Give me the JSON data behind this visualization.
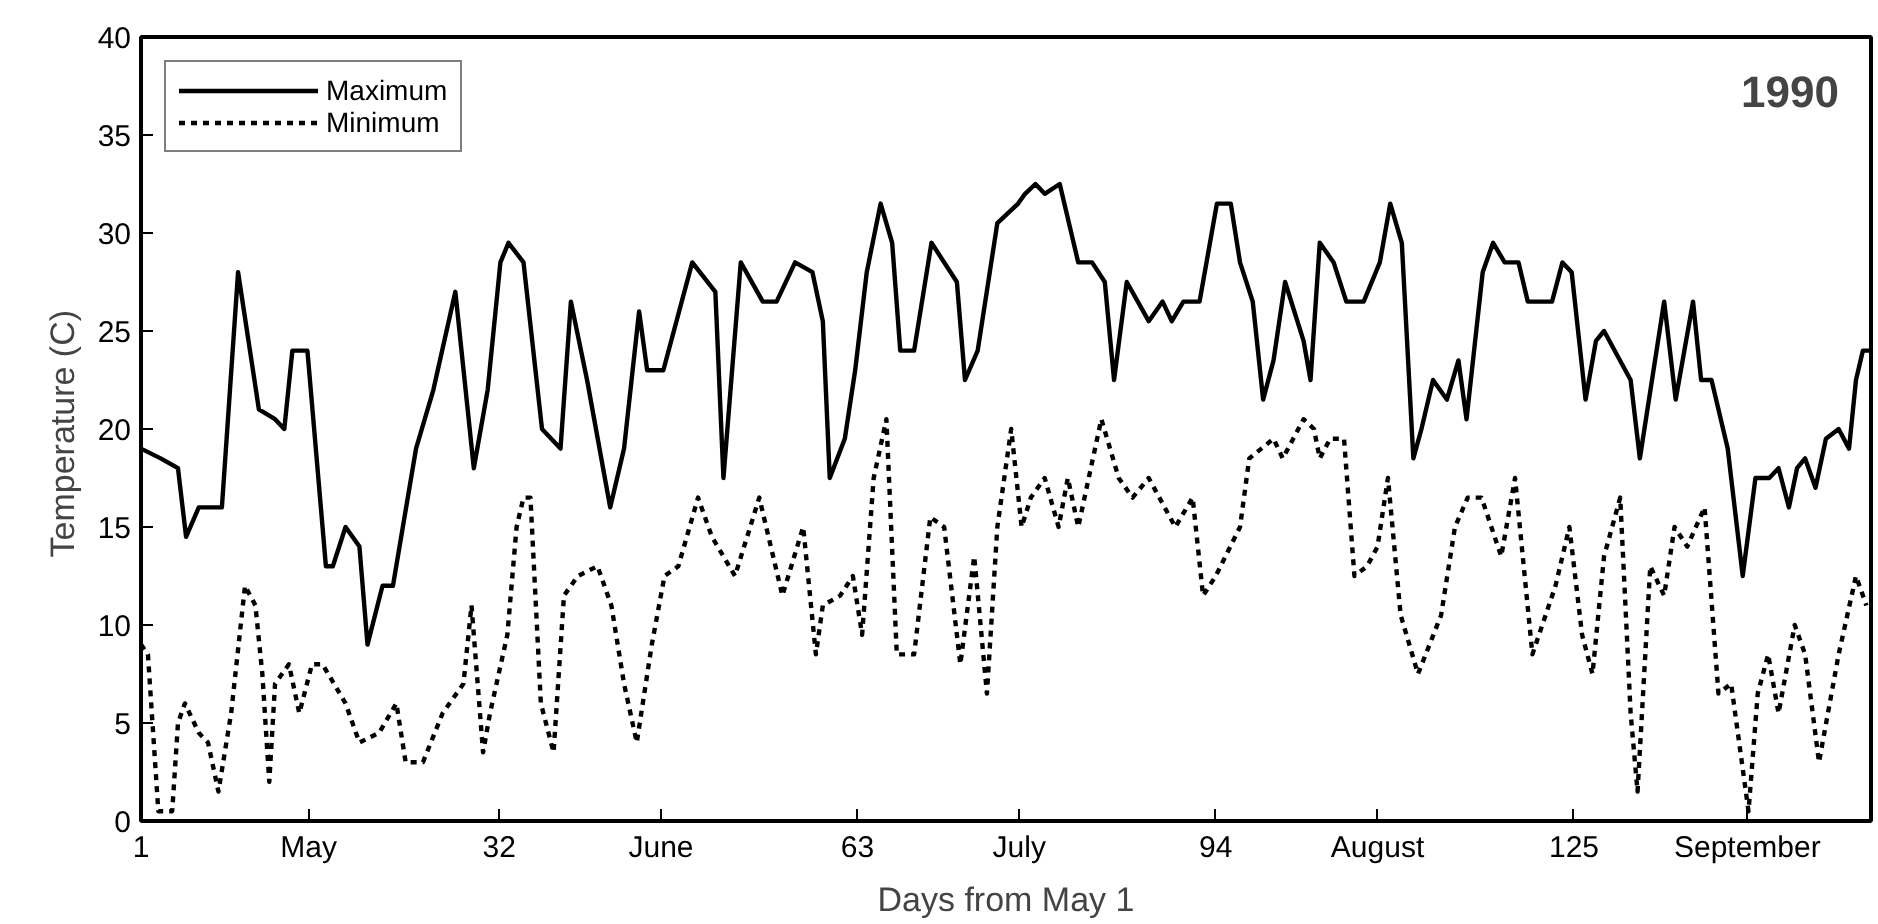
{
  "chart_data": {
    "type": "line",
    "xlabel": "Days from May 1",
    "ylabel": "Temperature  (C)",
    "annotations": [
      "1990"
    ],
    "xlim": [
      1,
      150.7
    ],
    "ylim": [
      0,
      40
    ],
    "xticks": [
      1,
      {
        "value": 15.5,
        "label": "May"
      },
      32,
      {
        "value": 46,
        "label": "June"
      },
      63,
      {
        "value": 77,
        "label": "July"
      },
      94,
      {
        "value": 108,
        "label": "August"
      },
      125,
      {
        "value": 140,
        "label": "September"
      }
    ],
    "yticks": [
      0,
      5,
      10,
      15,
      20,
      25,
      30,
      35,
      40
    ],
    "grid": false,
    "legend": "top left",
    "marker": "none",
    "series": [
      {
        "name": "Maximum",
        "color": "#000000",
        "line_style": "solid",
        "x": [
          1,
          2.7,
          4.2,
          4.9,
          6,
          8,
          9.4,
          11.2,
          12.6,
          13.4,
          14.1,
          15.4,
          17,
          17.6,
          18.7,
          19.9,
          20.6,
          21.9,
          22.8,
          24.8,
          26.3,
          28.2,
          29.8,
          31,
          32.1,
          32.8,
          34.1,
          35.7,
          37.3,
          38.2,
          39.6,
          41.6,
          42.8,
          44.1,
          44.8,
          46.2,
          48.7,
          50.7,
          51.4,
          52.9,
          54.8,
          56,
          57.6,
          59.1,
          60,
          60.6,
          61.9,
          62.8,
          63.8,
          65,
          66,
          66.7,
          67.9,
          69.4,
          71.6,
          72.3,
          73.4,
          75.1,
          76.9,
          77.5,
          78.4,
          79.2,
          80.5,
          82.1,
          83.3,
          84.4,
          85.2,
          86.3,
          88.2,
          89.4,
          90.2,
          91.2,
          92.6,
          94.1,
          95.3,
          96.1,
          97.2,
          98.1,
          99,
          100,
          101.6,
          102.2,
          103,
          104.2,
          105.3,
          106.8,
          108.2,
          109.1,
          110.1,
          111.1,
          111.8,
          112.8,
          114,
          115,
          115.7,
          117.1,
          118,
          119,
          120.2,
          121,
          123.1,
          124,
          124.8,
          126,
          126.9,
          127.6,
          129.9,
          130.7,
          132.8,
          133.8,
          135.3,
          136,
          136.9,
          138.3,
          139.6,
          140.7,
          141.9,
          142.7,
          143.6,
          144.3,
          145,
          145.9,
          146.8,
          147.9,
          148.8,
          149.4,
          150,
          150.7
        ],
        "values": [
          19,
          18.5,
          18,
          14.5,
          16,
          16,
          28,
          21,
          20.5,
          20,
          24,
          24,
          13,
          13,
          15,
          14,
          9,
          12,
          12,
          19,
          22,
          27,
          18,
          22,
          28.5,
          29.5,
          28.5,
          20,
          19,
          26.5,
          22.5,
          16,
          19,
          26,
          23,
          23,
          28.5,
          27,
          17.5,
          28.5,
          26.5,
          26.5,
          28.5,
          28,
          25.5,
          17.5,
          19.5,
          23,
          28,
          31.5,
          29.5,
          24,
          24,
          29.5,
          27.5,
          22.5,
          24,
          30.5,
          31.5,
          32,
          32.5,
          32,
          32.5,
          28.5,
          28.5,
          27.5,
          22.5,
          27.5,
          25.5,
          26.5,
          25.5,
          26.5,
          26.5,
          31.5,
          31.5,
          28.5,
          26.5,
          21.5,
          23.5,
          27.5,
          24.5,
          22.5,
          29.5,
          28.5,
          26.5,
          26.5,
          28.5,
          31.5,
          29.5,
          18.5,
          20,
          22.5,
          21.5,
          23.5,
          20.5,
          28,
          29.5,
          28.5,
          28.5,
          26.5,
          26.5,
          28.5,
          28,
          21.5,
          24.5,
          25,
          22.5,
          18.5,
          26.5,
          21.5,
          26.5,
          22.5,
          22.5,
          19,
          12.5,
          17.5,
          17.5,
          18,
          16,
          18,
          18.5,
          17,
          19.5,
          20,
          19,
          22.5,
          24,
          24
        ]
      },
      {
        "name": "Minimum",
        "color": "#000000",
        "line_style": "dotted",
        "x": [
          1,
          1.6,
          2.5,
          3.7,
          4.2,
          4.8,
          6,
          6.8,
          7.7,
          8.8,
          10,
          10.9,
          11.5,
          12.1,
          12.6,
          13.8,
          14.7,
          15.8,
          16.7,
          18.7,
          19.9,
          21.6,
          23.1,
          23.9,
          25.4,
          27.1,
          28.9,
          29.6,
          30.6,
          31.2,
          32.7,
          33.5,
          34.1,
          34.7,
          35.6,
          36.7,
          37.6,
          38.8,
          40.5,
          41.7,
          42.8,
          43.9,
          45.2,
          46.3,
          47.5,
          49.2,
          50.4,
          52.4,
          54.5,
          56.5,
          58.3,
          59.4,
          60,
          61.5,
          62.6,
          63.4,
          64.4,
          65.5,
          66.4,
          67.9,
          69.3,
          70.5,
          71.9,
          73.1,
          74.2,
          75.1,
          76.3,
          77.2,
          78,
          79.2,
          80.4,
          81.2,
          82.1,
          84.1,
          85.6,
          86.8,
          88.2,
          90.5,
          92,
          92.9,
          94,
          96.1,
          96.9,
          99,
          99.8,
          101.6,
          102.5,
          103,
          103.9,
          105.1,
          106,
          107.1,
          108,
          108.9,
          110,
          111.5,
          113.5,
          114.7,
          115.8,
          117,
          118.7,
          119.9,
          121.4,
          123.4,
          124.6,
          125.7,
          126.6,
          127.6,
          129,
          129.9,
          130.5,
          131.6,
          132.8,
          133.7,
          134.8,
          136.3,
          137.5,
          138.6,
          140.1,
          140.9,
          141.8,
          142.7,
          144.1,
          145,
          146.2,
          147.9,
          149.4,
          150.3
        ],
        "values": [
          9,
          8.5,
          0.5,
          0.5,
          5,
          6,
          4.5,
          4,
          1.5,
          5.5,
          12,
          11,
          7.5,
          2,
          7,
          8,
          5.5,
          8,
          8,
          6,
          4,
          4.5,
          6,
          3,
          3,
          5.5,
          7,
          11,
          3.5,
          5.5,
          9.5,
          15,
          16.5,
          16.5,
          6,
          3.5,
          11.5,
          12.5,
          13,
          11,
          7,
          4,
          9,
          12.5,
          13,
          16.5,
          14.5,
          12.5,
          16.5,
          11.5,
          15,
          8.5,
          11,
          11.5,
          12.5,
          9.5,
          17.5,
          20.5,
          8.5,
          8.5,
          15.5,
          15,
          8,
          13.5,
          6.5,
          15,
          20,
          15,
          16.5,
          17.5,
          15,
          17.5,
          15,
          20.5,
          17.5,
          16.5,
          17.5,
          15,
          16.5,
          11.5,
          12.5,
          15,
          18.5,
          19.5,
          18.5,
          20.5,
          20,
          18.5,
          19.5,
          19.5,
          12.5,
          13,
          14,
          17.5,
          10.5,
          7.5,
          10.5,
          15,
          16.5,
          16.5,
          13.5,
          17.5,
          8.5,
          12,
          15,
          9.5,
          7.5,
          13.5,
          16.5,
          5.5,
          1.5,
          13,
          11.5,
          15,
          14,
          16,
          6.5,
          7,
          0.5,
          6.5,
          8.5,
          5.5,
          10,
          8.5,
          3,
          8.5,
          12.5,
          11
        ]
      }
    ]
  }
}
